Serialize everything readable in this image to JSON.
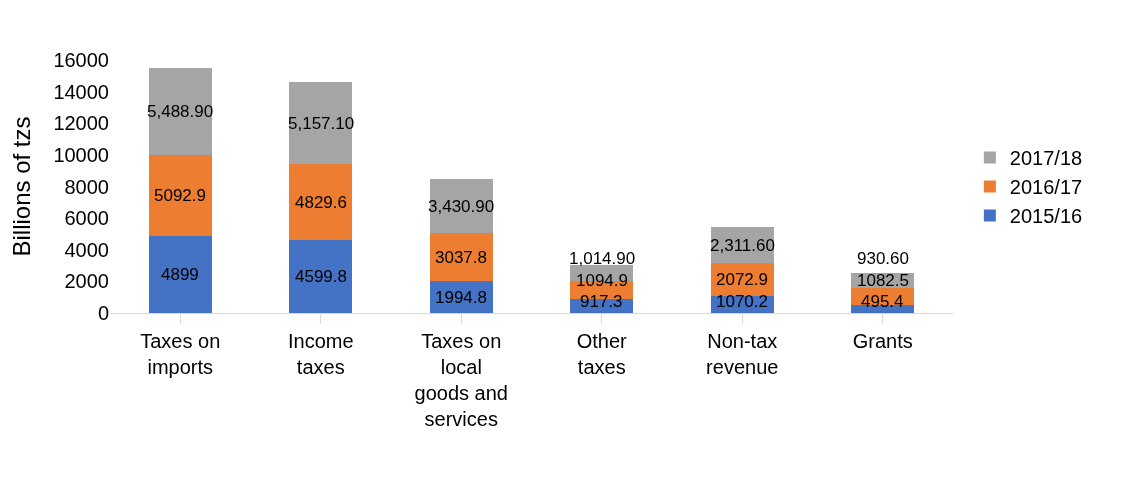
{
  "chart_data": {
    "type": "bar",
    "stacked": true,
    "ylabel": "Billions of tzs",
    "categories": [
      "Taxes on imports",
      "Income taxes",
      "Taxes on local goods and services",
      "Other taxes",
      "Non-tax revenue",
      "Grants"
    ],
    "series": [
      {
        "name": "2015/16",
        "color": "#4472c4",
        "values": [
          4899,
          4599.8,
          1994.8,
          917.3,
          1070.2,
          495.4
        ],
        "value_labels": [
          "4899",
          "4599.8",
          "1994.8",
          "917.3",
          "1070.2",
          "495.4"
        ]
      },
      {
        "name": "2016/17",
        "color": "#ed7d31",
        "values": [
          5092.9,
          4829.6,
          3037.8,
          1094.9,
          2072.9,
          1082.5
        ],
        "value_labels": [
          "5092.9",
          "4829.6",
          "3037.8",
          "1094.9",
          "2072.9",
          "1082.5"
        ]
      },
      {
        "name": "2017/18",
        "color": "#a5a5a5",
        "values": [
          5488.9,
          5157.1,
          3430.9,
          1014.9,
          2311.6,
          930.6
        ],
        "value_labels": [
          "5,488.90",
          "5,157.10",
          "3,430.90",
          "1,014.90",
          "2,311.60",
          "930.60"
        ]
      }
    ],
    "ylim": [
      0,
      16000
    ],
    "yticks": [
      0,
      2000,
      4000,
      6000,
      8000,
      10000,
      12000,
      14000,
      16000
    ],
    "grid": false,
    "legend": "right"
  }
}
